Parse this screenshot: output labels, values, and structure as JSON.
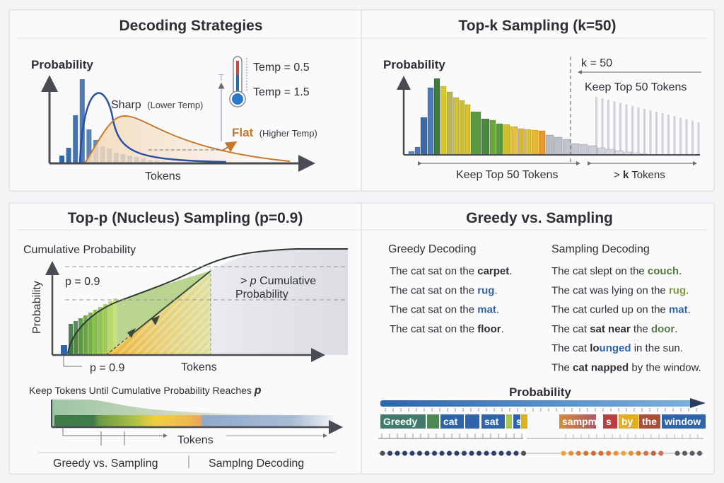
{
  "colors": {
    "blue": "#2f64a8",
    "orange": "#c8782a",
    "green": "#4f8a3a",
    "gray": "#b8bac4",
    "navy": "#2e3e6e"
  },
  "panels": {
    "decoding": {
      "title": "Decoding Strategies",
      "y_label": "Probability",
      "x_label": "Tokens",
      "temp_low": "Temp = 0.5",
      "temp_high": "Temp = 1.5",
      "temp_axis": "T",
      "sharp": "Sharp",
      "sharp_note": "(Lower Temp)",
      "flat": "Flat",
      "flat_note": "(Higher Temp)",
      "icon": "thermometer-icon"
    },
    "topk": {
      "title": "Top-k Sampling (k=50)",
      "y_label": "Probability",
      "k_label": "k = 50",
      "keep_upper": "Keep Top 50 Tokens",
      "keep_lower": "Keep Top 50 Tokens",
      "gt_k_prefix": ">",
      "gt_k_bold": "k",
      "gt_k_suffix": "Tokens"
    },
    "topp": {
      "title": "Top-p (Nucleus) Sampling (p=0.9)",
      "cum_label": "Cumulative Probability",
      "y_label": "Probability",
      "p_upper": "p = 0.9",
      "p_lower": "p = 0.9",
      "gt_p_prefix": ">",
      "gt_p_italic": "p",
      "gt_p_line1": "Cumulative",
      "gt_p_line2": "Probability",
      "x_label": "Tokens",
      "keep_caption": "Keep Tokens Until Cumulative Probability Reaches",
      "keep_caption_p": "p",
      "bar_x_label": "Tokens",
      "footer_left": "Greedy vs. Sampling",
      "footer_right": "Samplng Decoding"
    },
    "greedy": {
      "title": "Greedy vs. Sampling",
      "greedy_heading": "Greedy Decoding",
      "sampling_heading": "Sampling Decoding",
      "greedy_sentences": [
        [
          {
            "t": "The cat sat on the "
          },
          {
            "t": "carpet",
            "b": true,
            "c": "#2d2f36"
          },
          {
            "t": "."
          }
        ],
        [
          {
            "t": "The cat sat on the "
          },
          {
            "t": "rug",
            "b": true,
            "c": "#2f64a8"
          },
          {
            "t": "."
          }
        ],
        [
          {
            "t": "The cat sat on the "
          },
          {
            "t": "mat",
            "b": true,
            "c": "#2f64a8"
          },
          {
            "t": "."
          }
        ],
        [
          {
            "t": "The cat sat on the "
          },
          {
            "t": "floor",
            "b": true,
            "c": "#2d2f36"
          },
          {
            "t": "."
          }
        ]
      ],
      "sampling_sentences": [
        [
          {
            "t": "The cat slept on the "
          },
          {
            "t": "couch",
            "b": true,
            "c": "#4f7a3a"
          },
          {
            "t": "."
          }
        ],
        [
          {
            "t": "The cat was lying on the "
          },
          {
            "t": "rug",
            "b": true,
            "c": "#7a9a3a"
          },
          {
            "t": "."
          }
        ],
        [
          {
            "t": "The cat curled up on the "
          },
          {
            "t": "mat",
            "b": true,
            "c": "#2f64a8"
          },
          {
            "t": "."
          }
        ],
        [
          {
            "t": "The cat "
          },
          {
            "t": "sat near",
            "b": true,
            "c": "#2d2f36"
          },
          {
            "t": " the "
          },
          {
            "t": "door",
            "b": true,
            "c": "#5a7a4a"
          },
          {
            "t": "."
          }
        ],
        [
          {
            "t": "The cat "
          },
          {
            "t": "lo",
            "b": true,
            "c": "#2d2f36"
          },
          {
            "t": "unged",
            "b": true,
            "c": "#2f64a8"
          },
          {
            "t": " in the sun."
          }
        ],
        [
          {
            "t": "The "
          },
          {
            "t": "cat napped",
            "b": true,
            "c": "#2d2f36"
          },
          {
            "t": " by the window."
          }
        ]
      ],
      "prob_label": "Probability",
      "tokens_left": [
        {
          "label": "Greedy",
          "color": "#3f7a6a"
        },
        {
          "label": "",
          "color": "#4f8a55"
        },
        {
          "label": "cat",
          "color": "#2f64a8"
        },
        {
          "label": "",
          "color": "#2f64a8"
        },
        {
          "label": "sat",
          "color": "#2f64a8"
        },
        {
          "label": "",
          "color": "#a8c84a"
        },
        {
          "label": "s",
          "color": "#2f64a8"
        },
        {
          "label": "",
          "color": "#e0b020"
        }
      ],
      "tokens_right": [
        {
          "label": "sampm",
          "color": "#c8783a"
        },
        {
          "label": "s",
          "color": "#b84040"
        },
        {
          "label": "by",
          "color": "#e0b020"
        },
        {
          "label": "the",
          "color": "#a8503a"
        },
        {
          "label": "window",
          "color": "#2f64a8"
        }
      ]
    }
  }
}
